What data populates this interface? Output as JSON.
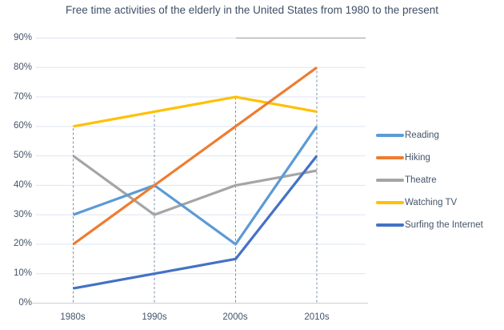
{
  "title": "Free time activities of the elderly in the United States from 1980 to the present",
  "chart_data": {
    "type": "line",
    "categories": [
      "1980s",
      "1990s",
      "2000s",
      "2010s"
    ],
    "series": [
      {
        "name": "Reading",
        "color": "#5B9BD5",
        "values": [
          30,
          40,
          20,
          60
        ]
      },
      {
        "name": "Hiking",
        "color": "#ED7D31",
        "values": [
          20,
          40,
          60,
          80
        ]
      },
      {
        "name": "Theatre",
        "color": "#A5A5A5",
        "values": [
          50,
          30,
          40,
          45
        ]
      },
      {
        "name": "Watching TV",
        "color": "#FFC000",
        "values": [
          60,
          65,
          70,
          65
        ]
      },
      {
        "name": "Surfing the Internet",
        "color": "#4472C4",
        "values": [
          5,
          10,
          15,
          50
        ]
      }
    ],
    "y_ticks": [
      "0%",
      "10%",
      "20%",
      "30%",
      "40%",
      "50%",
      "60%",
      "70%",
      "80%",
      "90%"
    ],
    "ylim": [
      0,
      90
    ],
    "grid": true,
    "legend_position": "right",
    "drop_lines": true,
    "xlabel": "",
    "ylabel": ""
  },
  "colors": {
    "title_text": "#3F4E66",
    "axis_text": "#44546A",
    "gridline": "#DDE4F0",
    "gridline_dark_segment": "#ABABAB",
    "axis_line": "#C8CFDA",
    "drop_line": "#7F90AE",
    "background": "#FFFFFF"
  }
}
